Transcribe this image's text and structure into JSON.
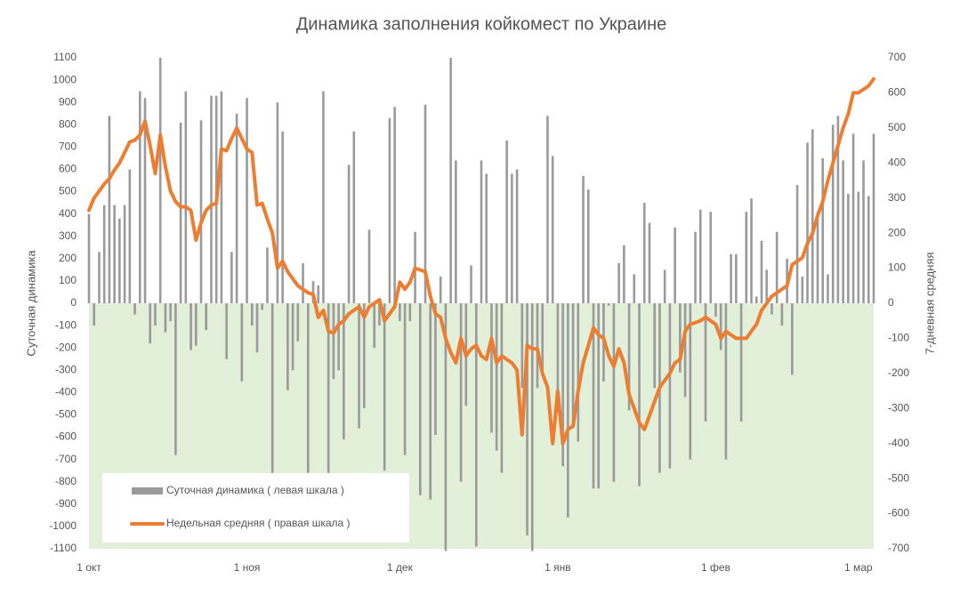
{
  "chart_data": {
    "type": "bar",
    "title": "Динамика заполнения койкомест по Украине",
    "y_label": "Суточная динамика",
    "y2_label": "7-дневная средняя",
    "categories": [
      "1 окт",
      null,
      null,
      null,
      null,
      null,
      null,
      null,
      null,
      null,
      null,
      null,
      null,
      null,
      null,
      null,
      null,
      null,
      null,
      null,
      null,
      null,
      null,
      null,
      null,
      null,
      null,
      null,
      null,
      null,
      null,
      "1 ноя",
      null,
      null,
      null,
      null,
      null,
      null,
      null,
      null,
      null,
      null,
      null,
      null,
      null,
      null,
      null,
      null,
      null,
      null,
      null,
      null,
      null,
      null,
      null,
      null,
      null,
      null,
      null,
      null,
      null,
      "1 дек",
      null,
      null,
      null,
      null,
      null,
      null,
      null,
      null,
      null,
      null,
      null,
      null,
      null,
      null,
      null,
      null,
      null,
      null,
      null,
      null,
      null,
      null,
      null,
      null,
      null,
      null,
      null,
      null,
      null,
      null,
      "1 янв",
      null,
      null,
      null,
      null,
      null,
      null,
      null,
      null,
      null,
      null,
      null,
      null,
      null,
      null,
      null,
      null,
      null,
      null,
      null,
      null,
      null,
      null,
      null,
      null,
      null,
      null,
      null,
      null,
      null,
      null,
      "1 фев",
      null,
      null,
      null,
      null,
      null,
      null,
      null,
      null,
      null,
      null,
      null,
      null,
      null,
      null,
      null,
      null,
      null,
      null,
      null,
      null,
      null,
      null,
      null,
      null,
      null,
      null,
      null,
      "1 мар",
      null,
      null,
      null
    ],
    "series": [
      {
        "name": "Суточная динамика ( левая шкала )",
        "type": "bar",
        "axis": "y",
        "color": "#9a9a9a",
        "values": [
          400,
          -100,
          230,
          440,
          840,
          440,
          380,
          440,
          600,
          -50,
          950,
          920,
          -180,
          -100,
          1100,
          -130,
          -80,
          -680,
          810,
          950,
          -210,
          -190,
          820,
          -120,
          930,
          930,
          950,
          -250,
          230,
          850,
          -350,
          920,
          -100,
          -220,
          -30,
          250,
          -760,
          900,
          770,
          -390,
          -300,
          -170,
          180,
          -760,
          100,
          80,
          950,
          -760,
          -340,
          -300,
          -610,
          620,
          770,
          -560,
          -470,
          330,
          -200,
          -100,
          -750,
          830,
          880,
          -80,
          -680,
          -80,
          320,
          -860,
          890,
          -880,
          -590,
          120,
          -1110,
          1100,
          640,
          -800,
          -460,
          170,
          -1090,
          640,
          580,
          -580,
          -660,
          -760,
          730,
          580,
          600,
          -380,
          -1040,
          -1110,
          -380,
          -300,
          840,
          660,
          -490,
          -730,
          -960,
          -560,
          -620,
          570,
          510,
          -830,
          -830,
          -350,
          -10,
          -800,
          180,
          260,
          -480,
          130,
          -820,
          450,
          360,
          -380,
          -760,
          150,
          -740,
          340,
          -310,
          -420,
          -700,
          320,
          420,
          -530,
          410,
          -60,
          -210,
          -700,
          220,
          220,
          -530,
          410,
          470,
          30,
          280,
          150,
          -50,
          320,
          -100,
          200,
          -320,
          530,
          120,
          720,
          780,
          410,
          650,
          130,
          800,
          840,
          640,
          490,
          760,
          500,
          640,
          480,
          760
        ]
      },
      {
        "name": "Недельная средняя ( правая шкала )",
        "type": "line",
        "axis": "y2",
        "color": "#ed7d31",
        "values": [
          265,
          300,
          320,
          340,
          355,
          380,
          400,
          430,
          460,
          465,
          480,
          520,
          450,
          370,
          480,
          390,
          320,
          290,
          275,
          275,
          265,
          180,
          230,
          265,
          280,
          285,
          440,
          435,
          470,
          500,
          470,
          440,
          430,
          280,
          285,
          240,
          200,
          100,
          120,
          90,
          70,
          50,
          40,
          30,
          25,
          -40,
          -20,
          -80,
          -85,
          -60,
          -50,
          -30,
          -20,
          -10,
          -40,
          -10,
          0,
          10,
          -50,
          -30,
          -10,
          60,
          40,
          60,
          100,
          95,
          90,
          20,
          -30,
          -40,
          -100,
          -140,
          -170,
          -100,
          -150,
          -130,
          -120,
          -150,
          -160,
          -100,
          -170,
          -150,
          -160,
          -170,
          -190,
          -375,
          -120,
          -130,
          -130,
          -200,
          -240,
          -400,
          -250,
          -400,
          -360,
          -350,
          -250,
          -170,
          -120,
          -70,
          -90,
          -100,
          -150,
          -180,
          -130,
          -170,
          -260,
          -300,
          -340,
          -360,
          -320,
          -280,
          -240,
          -220,
          -200,
          -170,
          -160,
          -80,
          -60,
          -55,
          -50,
          -40,
          -50,
          -60,
          -100,
          -80,
          -90,
          -100,
          -100,
          -100,
          -80,
          -60,
          -20,
          0,
          20,
          30,
          40,
          50,
          110,
          120,
          130,
          170,
          200,
          250,
          290,
          350,
          400,
          450,
          500,
          540,
          600,
          600,
          610,
          620,
          640
        ]
      }
    ],
    "ylim": [
      -1100,
      1100
    ],
    "yticks": [
      -1100,
      -1000,
      -900,
      -800,
      -700,
      -600,
      -500,
      -400,
      -300,
      -200,
      -100,
      0,
      100,
      200,
      300,
      400,
      500,
      600,
      700,
      800,
      900,
      1000,
      1100
    ],
    "y2lim": [
      -700,
      700
    ],
    "y2ticks": [
      -700,
      -600,
      -500,
      -400,
      -300,
      -200,
      -100,
      0,
      100,
      200,
      300,
      400,
      500,
      600,
      700
    ],
    "negative_fill": "#e2efd9",
    "legend": "bottom-left"
  }
}
